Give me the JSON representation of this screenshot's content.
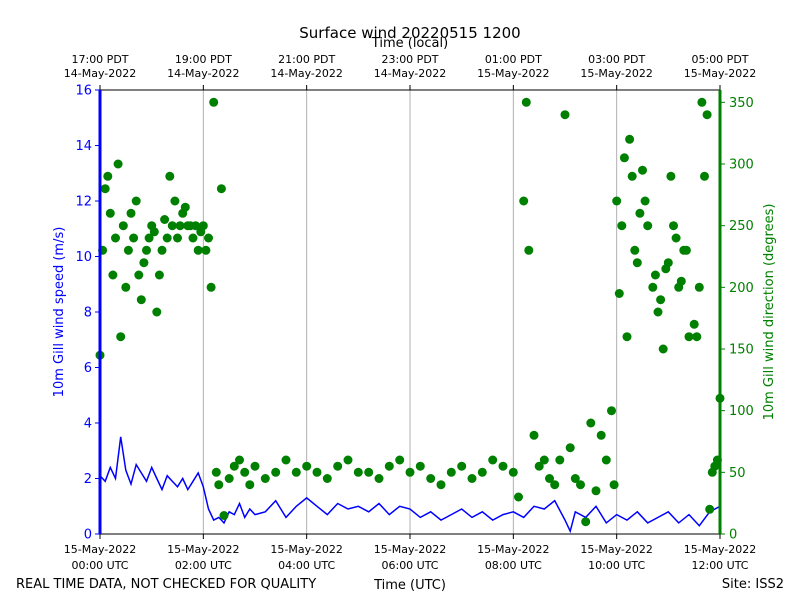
{
  "chart_data": {
    "type": "scatter",
    "title": "Surface wind 20220515 1200",
    "xlabel_top": "Time (local)",
    "xlabel_bottom": "Time (UTC)",
    "ylabel_left": "10m Gill wind speed (m/s)",
    "ylabel_right": "10m Gill wind direction (degrees)",
    "footer_left": "REAL TIME DATA, NOT CHECKED FOR QUALITY",
    "footer_right": "Site: ISS2",
    "x_range_hours_utc": [
      0,
      12
    ],
    "ylim_left": [
      0,
      16
    ],
    "ylim_right": [
      0,
      360
    ],
    "colors": {
      "speed": "#0000ff",
      "direction": "#008000",
      "grid": "#b0b0b0",
      "axis": "#000000"
    },
    "yticks_left": [
      0,
      2,
      4,
      6,
      8,
      10,
      12,
      14,
      16
    ],
    "yticks_right": [
      0,
      50,
      100,
      150,
      200,
      250,
      300,
      350
    ],
    "xticks_bottom": [
      {
        "hour": 0,
        "line1": "15-May-2022",
        "line2": "00:00 UTC"
      },
      {
        "hour": 2,
        "line1": "15-May-2022",
        "line2": "02:00 UTC"
      },
      {
        "hour": 4,
        "line1": "15-May-2022",
        "line2": "04:00 UTC"
      },
      {
        "hour": 6,
        "line1": "15-May-2022",
        "line2": "06:00 UTC"
      },
      {
        "hour": 8,
        "line1": "15-May-2022",
        "line2": "08:00 UTC"
      },
      {
        "hour": 10,
        "line1": "15-May-2022",
        "line2": "10:00 UTC"
      },
      {
        "hour": 12,
        "line1": "15-May-2022",
        "line2": "12:00 UTC"
      }
    ],
    "xticks_top": [
      {
        "hour": 0,
        "line1": "17:00 PDT",
        "line2": "14-May-2022"
      },
      {
        "hour": 2,
        "line1": "19:00 PDT",
        "line2": "14-May-2022"
      },
      {
        "hour": 4,
        "line1": "21:00 PDT",
        "line2": "14-May-2022"
      },
      {
        "hour": 6,
        "line1": "23:00 PDT",
        "line2": "14-May-2022"
      },
      {
        "hour": 8,
        "line1": "01:00 PDT",
        "line2": "15-May-2022"
      },
      {
        "hour": 10,
        "line1": "03:00 PDT",
        "line2": "15-May-2022"
      },
      {
        "hour": 12,
        "line1": "05:00 PDT",
        "line2": "15-May-2022"
      }
    ],
    "series": [
      {
        "name": "10m Gill wind speed",
        "axis": "left",
        "style": "line",
        "x": [
          0.0,
          0.1,
          0.2,
          0.3,
          0.4,
          0.5,
          0.6,
          0.7,
          0.8,
          0.9,
          1.0,
          1.1,
          1.2,
          1.3,
          1.4,
          1.5,
          1.6,
          1.7,
          1.8,
          1.9,
          2.0,
          2.1,
          2.2,
          2.3,
          2.4,
          2.5,
          2.6,
          2.7,
          2.8,
          2.9,
          3.0,
          3.2,
          3.4,
          3.6,
          3.8,
          4.0,
          4.2,
          4.4,
          4.6,
          4.8,
          5.0,
          5.2,
          5.4,
          5.6,
          5.8,
          6.0,
          6.2,
          6.4,
          6.6,
          6.8,
          7.0,
          7.2,
          7.4,
          7.6,
          7.8,
          8.0,
          8.2,
          8.4,
          8.6,
          8.8,
          9.0,
          9.1,
          9.2,
          9.4,
          9.6,
          9.8,
          10.0,
          10.2,
          10.4,
          10.6,
          10.8,
          11.0,
          11.2,
          11.4,
          11.6,
          11.8,
          12.0
        ],
        "values": [
          2.1,
          1.9,
          2.4,
          2.0,
          3.5,
          2.3,
          1.8,
          2.5,
          2.2,
          1.9,
          2.4,
          2.0,
          1.6,
          2.1,
          1.9,
          1.7,
          2.0,
          1.6,
          1.9,
          2.2,
          1.7,
          0.9,
          0.5,
          0.6,
          0.4,
          0.8,
          0.7,
          1.1,
          0.6,
          0.9,
          0.7,
          0.8,
          1.2,
          0.6,
          1.0,
          1.3,
          1.0,
          0.7,
          1.1,
          0.9,
          1.0,
          0.8,
          1.1,
          0.7,
          1.0,
          0.9,
          0.6,
          0.8,
          0.5,
          0.7,
          0.9,
          0.6,
          0.8,
          0.5,
          0.7,
          0.8,
          0.6,
          1.0,
          0.9,
          1.2,
          0.5,
          0.1,
          0.8,
          0.6,
          1.0,
          0.4,
          0.7,
          0.5,
          0.8,
          0.4,
          0.6,
          0.8,
          0.4,
          0.7,
          0.3,
          0.8,
          1.0
        ]
      },
      {
        "name": "10m Gill wind direction",
        "axis": "right",
        "style": "markers",
        "x": [
          0.0,
          0.05,
          0.1,
          0.15,
          0.2,
          0.25,
          0.3,
          0.35,
          0.4,
          0.45,
          0.5,
          0.55,
          0.6,
          0.65,
          0.7,
          0.75,
          0.8,
          0.85,
          0.9,
          0.95,
          1.0,
          1.05,
          1.1,
          1.15,
          1.2,
          1.25,
          1.3,
          1.35,
          1.4,
          1.45,
          1.5,
          1.55,
          1.6,
          1.65,
          1.7,
          1.75,
          1.8,
          1.85,
          1.9,
          1.95,
          2.0,
          2.05,
          2.1,
          2.15,
          2.2,
          2.25,
          2.3,
          2.35,
          2.4,
          2.5,
          2.6,
          2.7,
          2.8,
          2.9,
          3.0,
          3.2,
          3.4,
          3.6,
          3.8,
          4.0,
          4.2,
          4.4,
          4.6,
          4.8,
          5.0,
          5.2,
          5.4,
          5.6,
          5.8,
          6.0,
          6.2,
          6.4,
          6.6,
          6.8,
          7.0,
          7.2,
          7.4,
          7.6,
          7.8,
          8.0,
          8.1,
          8.2,
          8.25,
          8.3,
          8.4,
          8.5,
          8.6,
          8.7,
          8.8,
          8.9,
          9.0,
          9.1,
          9.2,
          9.3,
          9.4,
          9.5,
          9.6,
          9.7,
          9.8,
          9.9,
          9.95,
          10.0,
          10.05,
          10.1,
          10.15,
          10.2,
          10.25,
          10.3,
          10.35,
          10.4,
          10.45,
          10.5,
          10.55,
          10.6,
          10.7,
          10.75,
          10.8,
          10.85,
          10.9,
          10.95,
          11.0,
          11.05,
          11.1,
          11.15,
          11.2,
          11.25,
          11.3,
          11.35,
          11.4,
          11.5,
          11.55,
          11.6,
          11.65,
          11.7,
          11.75,
          11.8,
          11.85,
          11.9,
          11.95,
          12.0
        ],
        "values": [
          145,
          230,
          280,
          290,
          260,
          210,
          240,
          300,
          160,
          250,
          200,
          230,
          260,
          240,
          270,
          210,
          190,
          220,
          230,
          240,
          250,
          245,
          180,
          210,
          230,
          255,
          240,
          290,
          250,
          270,
          240,
          250,
          260,
          265,
          250,
          250,
          240,
          250,
          230,
          245,
          250,
          230,
          240,
          200,
          350,
          50,
          40,
          280,
          15,
          45,
          55,
          60,
          50,
          40,
          55,
          45,
          50,
          60,
          50,
          55,
          50,
          45,
          55,
          60,
          50,
          50,
          45,
          55,
          60,
          50,
          55,
          45,
          40,
          50,
          55,
          45,
          50,
          60,
          55,
          50,
          30,
          270,
          350,
          230,
          80,
          55,
          60,
          45,
          40,
          60,
          340,
          70,
          45,
          40,
          10,
          90,
          35,
          80,
          60,
          100,
          40,
          270,
          195,
          250,
          305,
          160,
          320,
          290,
          230,
          220,
          260,
          295,
          270,
          250,
          200,
          210,
          180,
          190,
          150,
          215,
          220,
          290,
          250,
          240,
          200,
          205,
          230,
          230,
          160,
          170,
          160,
          200,
          350,
          290,
          340,
          20,
          50,
          55,
          60,
          110
        ]
      }
    ]
  }
}
